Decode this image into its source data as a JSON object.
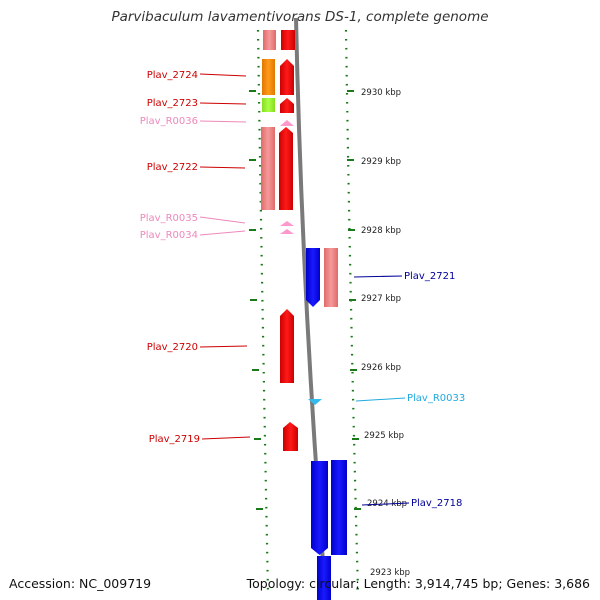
{
  "title": "Parvibaculum lavamentivorans DS-1, complete genome",
  "footer": {
    "accession": "Accession: NC_009719",
    "summary": "Topology: circular; Length: 3,914,745 bp; Genes: 3,686"
  },
  "colors": {
    "cds_forward": "#ff0000",
    "cds_forward_light": "#f08080",
    "cds_reverse": "#0000ff",
    "trna_forward": "#ff99cc",
    "trna_reverse": "#33bbee",
    "orange_feature": "#ff8c00",
    "green_feature": "#99ee33",
    "tick": "#1a7a1a",
    "backbone": "#888888"
  },
  "ruler": {
    "unit": "kbp",
    "ticks": [
      {
        "label": "2930 kbp"
      },
      {
        "label": "2929 kbp"
      },
      {
        "label": "2928 kbp"
      },
      {
        "label": "2927 kbp"
      },
      {
        "label": "2926 kbp"
      },
      {
        "label": "2925 kbp"
      },
      {
        "label": "2924 kbp"
      },
      {
        "label": "2923 kbp"
      }
    ]
  },
  "features": [
    {
      "locus": "Plav_2724",
      "type": "CDS",
      "strand": "+"
    },
    {
      "locus": "Plav_2723",
      "type": "CDS",
      "strand": "+"
    },
    {
      "locus": "Plav_R0036",
      "type": "tRNA",
      "strand": "+"
    },
    {
      "locus": "Plav_2722",
      "type": "CDS",
      "strand": "+"
    },
    {
      "locus": "Plav_R0035",
      "type": "tRNA",
      "strand": "+"
    },
    {
      "locus": "Plav_R0034",
      "type": "tRNA",
      "strand": "+"
    },
    {
      "locus": "Plav_2721",
      "type": "CDS",
      "strand": "-"
    },
    {
      "locus": "Plav_2720",
      "type": "CDS",
      "strand": "+"
    },
    {
      "locus": "Plav_R0033",
      "type": "tRNA",
      "strand": "-"
    },
    {
      "locus": "Plav_2719",
      "type": "CDS",
      "strand": "+"
    },
    {
      "locus": "Plav_2718",
      "type": "CDS",
      "strand": "-"
    }
  ]
}
